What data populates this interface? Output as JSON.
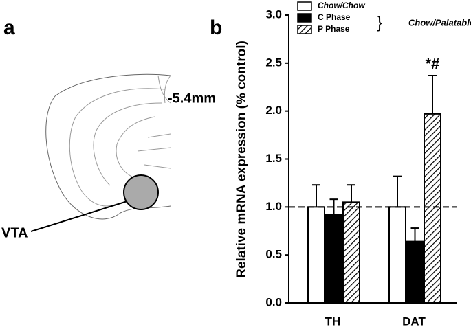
{
  "panel_a": {
    "label": "a",
    "depth": "-5.4mm",
    "region": "VTA"
  },
  "chart_data": {
    "type": "bar",
    "panel_label": "b",
    "y_label": "Relative mRNA expression (% control)",
    "categories": [
      "TH",
      "DAT"
    ],
    "series": [
      {
        "name": "Chow/Chow",
        "color": "#ffffff",
        "hatch": false,
        "values": [
          1.0,
          1.0
        ],
        "errors": [
          0.23,
          0.32
        ]
      },
      {
        "name": "C Phase",
        "color": "#000000",
        "hatch": false,
        "values": [
          0.92,
          0.64
        ],
        "errors": [
          0.16,
          0.14
        ]
      },
      {
        "name": "P Phase",
        "color": "#ffffff",
        "hatch": true,
        "values": [
          1.05,
          1.97
        ],
        "errors": [
          0.18,
          0.4
        ]
      }
    ],
    "legend_group_label": "Chow/Palatable",
    "reference_line": 1.0,
    "annotations": [
      {
        "text": "*#",
        "series": 2,
        "category": 1
      }
    ],
    "ylim": [
      0,
      3
    ],
    "yticks": [
      {
        "value": 0,
        "label": "0.0"
      },
      {
        "value": 0.5,
        "label": "0.5"
      },
      {
        "value": 1,
        "label": "1.0"
      },
      {
        "value": 1.5,
        "label": "1.5"
      },
      {
        "value": 2,
        "label": "2.0"
      },
      {
        "value": 2.5,
        "label": "2.5"
      },
      {
        "value": 3,
        "label": "3.0"
      }
    ]
  }
}
